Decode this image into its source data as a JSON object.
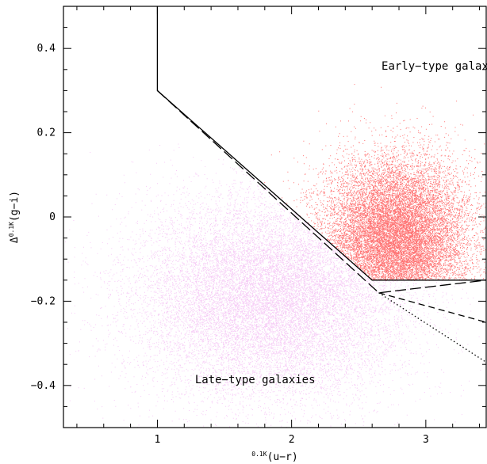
{
  "chart_data": {
    "type": "scatter",
    "title": "",
    "xlabel": "0.1K(u−r)",
    "xlabel_superscript": "0.1K",
    "xlabel_main": "(u−r)",
    "ylabel": "Δ^0.1K(g−i)",
    "ylabel_prefix": "Δ",
    "ylabel_superscript": "0.1K",
    "ylabel_main": "(g−i)",
    "xlim": [
      0.3,
      3.45
    ],
    "ylim": [
      -0.5,
      0.5
    ],
    "xticks": [
      1,
      2,
      3
    ],
    "xtick_labels": [
      "1",
      "2",
      "3"
    ],
    "yticks": [
      0.4,
      0.2,
      0,
      -0.2,
      -0.4
    ],
    "ytick_labels": [
      "0.4",
      "0.2",
      "0",
      "−0.2",
      "−0.4"
    ],
    "grid": false,
    "annotations": [
      {
        "text": "Early−type galaxies",
        "x": 2.67,
        "y": 0.35
      },
      {
        "text": "Late−type galaxies",
        "x": 1.28,
        "y": -0.395
      }
    ],
    "series": [
      {
        "role": "early-type",
        "color": "#ff0000",
        "distribution": "gaussian",
        "center": [
          2.78,
          -0.05
        ],
        "spread": [
          0.27,
          0.095
        ],
        "points": 14000,
        "boundary": "x > 1 and y > -0.15 and y > 0.3 - 0.27*(x - 1)"
      },
      {
        "role": "late-type",
        "color": "#dd44dd",
        "distribution": "gaussian",
        "center": [
          1.85,
          -0.19
        ],
        "spread": [
          0.5,
          0.12
        ],
        "points": 16000,
        "boundary": "x < 1 or y < 0.3 - 0.27*(x - 1) or y < -0.15"
      }
    ],
    "lines": [
      {
        "style": "solid",
        "points": [
          [
            1.0,
            0.5
          ],
          [
            1.0,
            0.3
          ],
          [
            2.6,
            -0.15
          ],
          [
            3.45,
            -0.15
          ]
        ]
      },
      {
        "style": "long-dash",
        "points": [
          [
            1.0,
            0.3
          ],
          [
            2.65,
            -0.18
          ],
          [
            3.45,
            -0.15
          ]
        ]
      },
      {
        "style": "dash",
        "points": [
          [
            2.65,
            -0.18
          ],
          [
            3.45,
            -0.25
          ]
        ]
      },
      {
        "style": "dot",
        "points": [
          [
            2.65,
            -0.18
          ],
          [
            3.45,
            -0.345
          ]
        ]
      }
    ]
  }
}
